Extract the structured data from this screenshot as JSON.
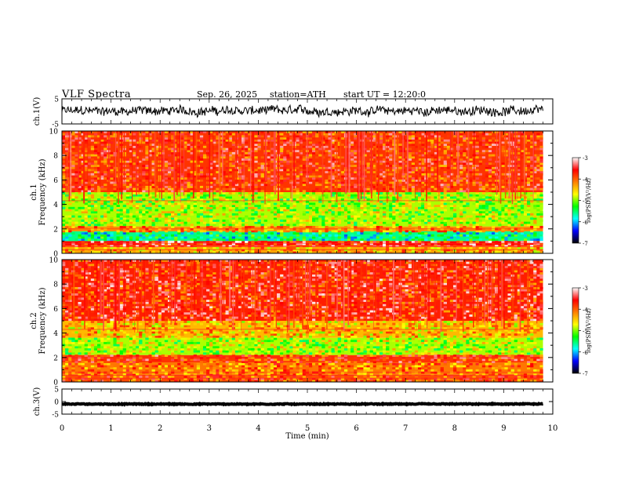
{
  "header": {
    "title": "VLF Spectra",
    "date": "Sep. 26, 2025",
    "station": "station=ATH",
    "start": "start UT =  12:20:0"
  },
  "chart_data": [
    {
      "type": "line",
      "panel": "ch1-waveform",
      "ylabel": "ch.1(V)",
      "ylim": [
        -5,
        5
      ],
      "yticks": [
        "5",
        "-5"
      ],
      "xlim": [
        0,
        10
      ],
      "x_end": 9.8,
      "description_series": {
        "mean": 0.2,
        "amplitude": 3.0,
        "clip_top": 5
      }
    },
    {
      "type": "heatmap",
      "panel": "ch1-spectrogram",
      "ylabel": "ch.1\nFrequency (kHz)",
      "ylabel_lines": [
        "ch.1",
        "Frequency (kHz)"
      ],
      "ylim": [
        0,
        10
      ],
      "yticks": [
        "0",
        "2",
        "4",
        "6",
        "8",
        "10"
      ],
      "xlim": [
        0,
        9.8
      ],
      "log_psd_by_frequency_khz": [
        {
          "f": [
            0,
            0.6
          ],
          "level": -4.3
        },
        {
          "f": [
            0.6,
            1.0
          ],
          "level": -3.6
        },
        {
          "f": [
            1.0,
            1.8
          ],
          "level": -5.6
        },
        {
          "f": [
            1.8,
            2.2
          ],
          "level": -4.2
        },
        {
          "f": [
            2.2,
            5.0
          ],
          "level": -4.9
        },
        {
          "f": [
            5.0,
            10
          ],
          "level": -3.8
        }
      ]
    },
    {
      "type": "heatmap",
      "panel": "ch2-spectrogram",
      "ylabel_lines": [
        "ch.2",
        "Frequency (kHz)"
      ],
      "ylim": [
        0,
        10
      ],
      "yticks": [
        "0",
        "2",
        "4",
        "6",
        "8",
        "10"
      ],
      "xlim": [
        0,
        9.8
      ],
      "log_psd_by_frequency_khz": [
        {
          "f": [
            0,
            0.6
          ],
          "level": -3.9
        },
        {
          "f": [
            0.6,
            1.6
          ],
          "level": -4.1
        },
        {
          "f": [
            1.6,
            2.2
          ],
          "level": -3.8
        },
        {
          "f": [
            2.2,
            3.6
          ],
          "level": -4.9
        },
        {
          "f": [
            3.6,
            5.0
          ],
          "level": -4.4
        },
        {
          "f": [
            5.0,
            10
          ],
          "level": -3.7
        }
      ]
    },
    {
      "type": "line",
      "panel": "ch3-waveform",
      "ylabel": "ch.3(V)",
      "ylim": [
        -5,
        5
      ],
      "yticks": [
        "5",
        "0",
        "-5"
      ],
      "xlim": [
        0,
        10
      ],
      "x_end": 9.8,
      "description_series": {
        "mean": -1.0,
        "amplitude": 0.3
      }
    }
  ],
  "xaxis": {
    "label": "Time (min)",
    "ticks": [
      "0",
      "1",
      "2",
      "3",
      "4",
      "5",
      "6",
      "7",
      "8",
      "9",
      "10"
    ],
    "range": [
      0,
      10
    ]
  },
  "colorbar": {
    "label": "log(PSD)(V²/Hz)",
    "range": [
      -7,
      -3
    ],
    "ticks": [
      "-3",
      "-4",
      "-5",
      "-6",
      "-7"
    ],
    "stops": [
      "#000000",
      "#0000ff",
      "#00ffff",
      "#00ff00",
      "#ffff00",
      "#ff8000",
      "#ff0000",
      "#ffffff"
    ]
  }
}
